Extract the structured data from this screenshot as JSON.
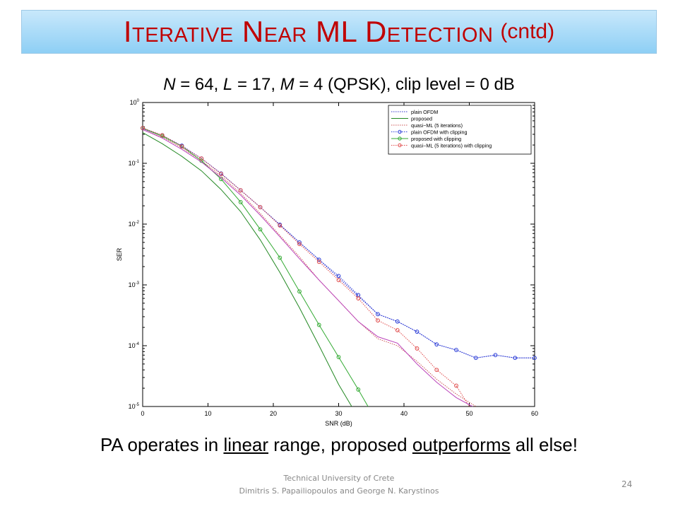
{
  "slide": {
    "title_main": "Iterative Near ML Detection",
    "title_sub": "(cntd)",
    "subtitle_parts": [
      "N",
      " = 64, ",
      "L",
      " = 17, ",
      "M",
      " = 4 (QPSK), clip level = 0 dB"
    ],
    "caption_parts": [
      "PA operates in ",
      "linear",
      " range, proposed ",
      "outperforms",
      " all else!"
    ],
    "footer_line1": "Technical University of Crete",
    "footer_line2": "Dimitris S. Papailiopoulos  and George N. Karystinos",
    "page_number": "24"
  },
  "chart_data": {
    "type": "line",
    "xlabel": "SNR (dB)",
    "ylabel": "SER",
    "xlim": [
      0,
      60
    ],
    "ylim": [
      1e-05,
      1
    ],
    "y_scale": "log",
    "x_ticks": [
      0,
      10,
      20,
      30,
      40,
      50,
      60
    ],
    "y_tick_labels": [
      "10^0",
      "10^-1",
      "10^-2",
      "10^-3",
      "10^-4",
      "10^-5"
    ],
    "grid": false,
    "legend_position": "top-right",
    "series": [
      {
        "name": "plain OFDM",
        "color": "#3333cc",
        "style": "dotted",
        "marker": "none",
        "x": [
          0,
          3,
          6,
          9,
          12,
          15,
          18,
          21,
          24,
          27,
          30,
          33,
          36,
          39,
          42,
          45,
          48,
          51,
          54,
          57,
          60
        ],
        "y": [
          0.37,
          0.28,
          0.19,
          0.12,
          0.068,
          0.036,
          0.019,
          0.0098,
          0.005,
          0.0026,
          0.0013,
          0.00065,
          0.00033,
          0.00025,
          0.00017,
          0.000105,
          8.5e-05,
          6.3e-05,
          7e-05,
          6.3e-05,
          6.3e-05
        ]
      },
      {
        "name": "proposed",
        "color": "#228822",
        "style": "solid",
        "marker": "none",
        "x": [
          0,
          3,
          6,
          9,
          12,
          15,
          18,
          21,
          24,
          27,
          30,
          32
        ],
        "y": [
          0.32,
          0.21,
          0.13,
          0.075,
          0.037,
          0.016,
          0.0055,
          0.0016,
          0.00042,
          0.0001,
          2.3e-05,
          1e-05
        ]
      },
      {
        "name": "quasi−ML (5 iterations)",
        "color": "#cc5555",
        "style": "dotted",
        "marker": "none",
        "x": [
          0,
          3,
          6,
          9,
          12,
          15,
          18,
          21,
          24,
          27,
          30,
          33,
          36,
          39,
          42,
          45,
          48,
          51
        ],
        "y": [
          0.36,
          0.27,
          0.18,
          0.11,
          0.062,
          0.032,
          0.015,
          0.0065,
          0.0029,
          0.0012,
          0.00055,
          0.00025,
          0.00013,
          0.0001,
          5.5e-05,
          2.8e-05,
          1.6e-05,
          1e-05
        ]
      },
      {
        "name": "plain OFDM with clipping",
        "color": "#2a3dd8",
        "style": "dotted",
        "marker": "circle",
        "x": [
          0,
          3,
          6,
          9,
          12,
          15,
          18,
          21,
          24,
          27,
          30,
          33,
          36,
          39,
          42,
          45,
          48,
          51,
          54,
          57,
          60
        ],
        "y": [
          0.38,
          0.29,
          0.195,
          0.12,
          0.068,
          0.036,
          0.019,
          0.0098,
          0.005,
          0.0026,
          0.0014,
          0.00068,
          0.00033,
          0.00025,
          0.00017,
          0.000105,
          8.5e-05,
          6.3e-05,
          7e-05,
          6.3e-05,
          6.3e-05
        ]
      },
      {
        "name": "proposed with clipping",
        "color": "#33aa33",
        "style": "solid",
        "marker": "circle",
        "x": [
          0,
          3,
          6,
          9,
          12,
          15,
          18,
          21,
          24,
          27,
          30,
          33,
          34.5
        ],
        "y": [
          0.38,
          0.28,
          0.19,
          0.11,
          0.055,
          0.023,
          0.0082,
          0.0028,
          0.00078,
          0.00022,
          6.5e-05,
          1.9e-05,
          1e-05
        ]
      },
      {
        "name": "quasi−ML (5 iterations) with clipping",
        "color": "#e04a4a",
        "style": "dotted",
        "marker": "circle",
        "x": [
          0,
          3,
          6,
          9,
          12,
          15,
          18,
          21,
          24,
          27,
          30,
          33,
          36,
          39,
          42,
          45,
          48,
          50
        ],
        "y": [
          0.38,
          0.29,
          0.19,
          0.12,
          0.067,
          0.036,
          0.019,
          0.0095,
          0.0047,
          0.0024,
          0.0012,
          0.0006,
          0.00026,
          0.00018,
          9e-05,
          4e-05,
          2.2e-05,
          1e-05
        ]
      },
      {
        "name": "",
        "color": "#bb44bb",
        "style": "solid",
        "marker": "none",
        "x": [
          0,
          3,
          6,
          9,
          12,
          15,
          18,
          21,
          24,
          27,
          30,
          33,
          36,
          39,
          42,
          45,
          48,
          50.5
        ],
        "y": [
          0.36,
          0.26,
          0.17,
          0.105,
          0.058,
          0.03,
          0.014,
          0.0062,
          0.0027,
          0.0012,
          0.00055,
          0.00025,
          0.00014,
          0.00011,
          5e-05,
          2.5e-05,
          1.4e-05,
          1e-05
        ]
      }
    ]
  }
}
